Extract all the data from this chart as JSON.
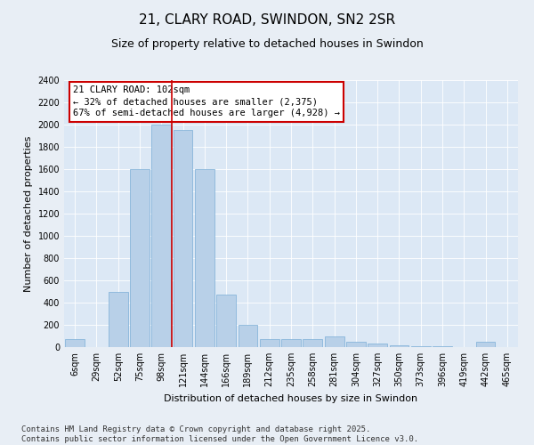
{
  "title": "21, CLARY ROAD, SWINDON, SN2 2SR",
  "subtitle": "Size of property relative to detached houses in Swindon",
  "xlabel": "Distribution of detached houses by size in Swindon",
  "ylabel": "Number of detached properties",
  "categories": [
    "6sqm",
    "29sqm",
    "52sqm",
    "75sqm",
    "98sqm",
    "121sqm",
    "144sqm",
    "166sqm",
    "189sqm",
    "212sqm",
    "235sqm",
    "258sqm",
    "281sqm",
    "304sqm",
    "327sqm",
    "350sqm",
    "373sqm",
    "396sqm",
    "419sqm",
    "442sqm",
    "465sqm"
  ],
  "values": [
    75,
    0,
    500,
    1600,
    2000,
    1950,
    1600,
    470,
    200,
    75,
    75,
    75,
    100,
    50,
    30,
    20,
    10,
    5,
    0,
    50,
    0
  ],
  "bar_color": "#b8d0e8",
  "bar_edge_color": "#7aaed6",
  "vline_x_index": 4,
  "vline_color": "#cc0000",
  "annotation_text": "21 CLARY ROAD: 102sqm\n← 32% of detached houses are smaller (2,375)\n67% of semi-detached houses are larger (4,928) →",
  "annotation_box_color": "#ffffff",
  "annotation_box_edge_color": "#cc0000",
  "ylim": [
    0,
    2400
  ],
  "ytick_step": 200,
  "background_color": "#e8eef5",
  "plot_background_color": "#dce8f5",
  "footer_line1": "Contains HM Land Registry data © Crown copyright and database right 2025.",
  "footer_line2": "Contains public sector information licensed under the Open Government Licence v3.0.",
  "title_fontsize": 11,
  "subtitle_fontsize": 9,
  "axis_label_fontsize": 8,
  "tick_fontsize": 7,
  "annotation_fontsize": 7.5,
  "footer_fontsize": 6.5
}
